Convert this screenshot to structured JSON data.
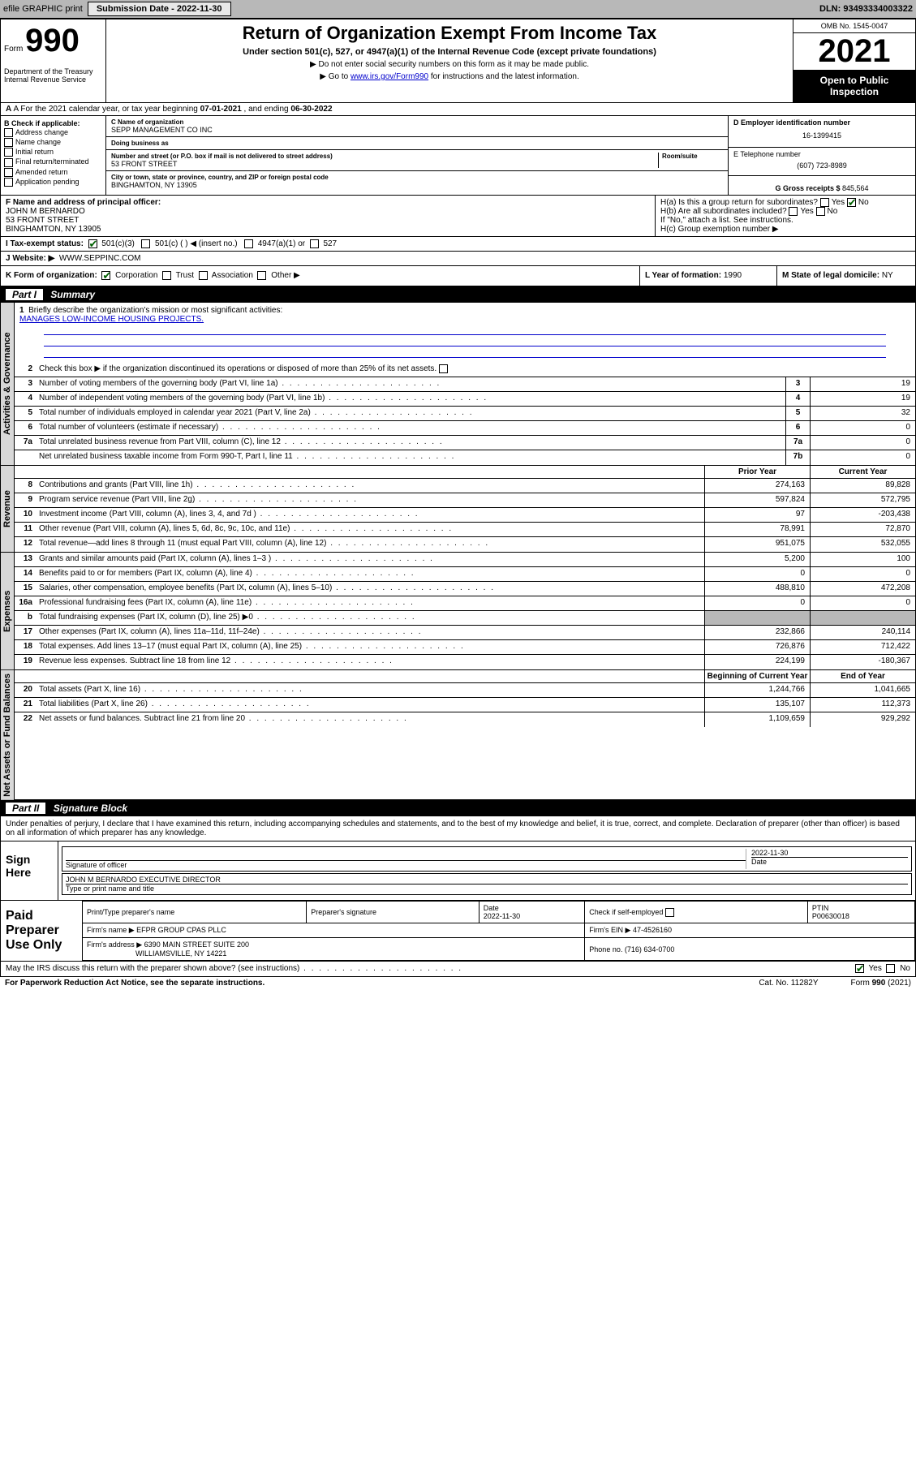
{
  "topbar": {
    "efile_label": "efile GRAPHIC print",
    "submission_label": "Submission Date - 2022-11-30",
    "dln_label": "DLN: 93493334003322"
  },
  "header": {
    "form_label": "Form",
    "form_number": "990",
    "dept": "Department of the Treasury\nInternal Revenue Service",
    "title": "Return of Organization Exempt From Income Tax",
    "subtitle": "Under section 501(c), 527, or 4947(a)(1) of the Internal Revenue Code (except private foundations)",
    "note1": "Do not enter social security numbers on this form as it may be made public.",
    "note2_prefix": "Go to ",
    "note2_link": "www.irs.gov/Form990",
    "note2_suffix": " for instructions and the latest information.",
    "omb": "OMB No. 1545-0047",
    "year": "2021",
    "open": "Open to Public Inspection"
  },
  "row_a": {
    "prefix": "A For the 2021 calendar year, or tax year beginning ",
    "begin": "07-01-2021",
    "mid": " , and ending ",
    "end": "06-30-2022"
  },
  "checkB": {
    "header": "B Check if applicable:",
    "items": [
      "Address change",
      "Name change",
      "Initial return",
      "Final return/terminated",
      "Amended return",
      "Application pending"
    ]
  },
  "colC": {
    "name_lbl": "C Name of organization",
    "name": "SEPP MANAGEMENT CO INC",
    "dba_lbl": "Doing business as",
    "dba": "",
    "street_lbl": "Number and street (or P.O. box if mail is not delivered to street address)",
    "room_lbl": "Room/suite",
    "street": "53 FRONT STREET",
    "city_lbl": "City or town, state or province, country, and ZIP or foreign postal code",
    "city": "BINGHAMTON, NY  13905"
  },
  "colDE": {
    "ein_lbl": "D Employer identification number",
    "ein": "16-1399415",
    "phone_lbl": "E Telephone number",
    "phone": "(607) 723-8989",
    "gross_lbl": "G Gross receipts $",
    "gross": "845,564"
  },
  "rowF": {
    "lbl": "F Name and address of principal officer:",
    "name": "JOHN M BERNARDO",
    "street": "53 FRONT STREET",
    "city": "BINGHAMTON, NY  13905"
  },
  "rowH": {
    "ha": "H(a)  Is this a group return for subordinates?",
    "ha_yes": "Yes",
    "ha_no": "No",
    "hb": "H(b)  Are all subordinates included?",
    "hb_yes": "Yes",
    "hb_no": "No",
    "hb_note": "If \"No,\" attach a list. See instructions.",
    "hc": "H(c)  Group exemption number ▶"
  },
  "rowI": {
    "lbl": "I    Tax-exempt status:",
    "i1": "501(c)(3)",
    "i2": "501(c) (  ) ◀ (insert no.)",
    "i3": "4947(a)(1) or",
    "i4": "527"
  },
  "rowJ": {
    "lbl": "J   Website: ▶",
    "val": "WWW.SEPPINC.COM"
  },
  "rowK": {
    "lbl": "K Form of organization:",
    "k1": "Corporation",
    "k2": "Trust",
    "k3": "Association",
    "k4": "Other ▶"
  },
  "rowL": {
    "lbl": "L Year of formation: ",
    "val": "1990"
  },
  "rowM": {
    "lbl": "M State of legal domicile: ",
    "val": "NY"
  },
  "part1": {
    "num": "Part I",
    "title": "Summary"
  },
  "sidebars": {
    "s1": "Activities & Governance",
    "s2": "Revenue",
    "s3": "Expenses",
    "s4": "Net Assets or Fund Balances"
  },
  "mission": {
    "n": "1",
    "lbl": "Briefly describe the organization's mission or most significant activities:",
    "text": "MANAGES LOW-INCOME HOUSING PROJECTS."
  },
  "line2": {
    "n": "2",
    "t": "Check this box ▶      if the organization discontinued its operations or disposed of more than 25% of its net assets."
  },
  "govRows": [
    {
      "n": "3",
      "t": "Number of voting members of the governing body (Part VI, line 1a)",
      "k": "3",
      "v": "19"
    },
    {
      "n": "4",
      "t": "Number of independent voting members of the governing body (Part VI, line 1b)",
      "k": "4",
      "v": "19"
    },
    {
      "n": "5",
      "t": "Total number of individuals employed in calendar year 2021 (Part V, line 2a)",
      "k": "5",
      "v": "32"
    },
    {
      "n": "6",
      "t": "Total number of volunteers (estimate if necessary)",
      "k": "6",
      "v": "0"
    },
    {
      "n": "7a",
      "t": "Total unrelated business revenue from Part VIII, column (C), line 12",
      "k": "7a",
      "v": "0"
    },
    {
      "n": "",
      "t": "Net unrelated business taxable income from Form 990-T, Part I, line 11",
      "k": "7b",
      "v": "0"
    }
  ],
  "colHdr": {
    "prior": "Prior Year",
    "current": "Current Year",
    "boy": "Beginning of Current Year",
    "eoy": "End of Year"
  },
  "revRows": [
    {
      "n": "8",
      "t": "Contributions and grants (Part VIII, line 1h)",
      "p": "274,163",
      "c": "89,828"
    },
    {
      "n": "9",
      "t": "Program service revenue (Part VIII, line 2g)",
      "p": "597,824",
      "c": "572,795"
    },
    {
      "n": "10",
      "t": "Investment income (Part VIII, column (A), lines 3, 4, and 7d )",
      "p": "97",
      "c": "-203,438"
    },
    {
      "n": "11",
      "t": "Other revenue (Part VIII, column (A), lines 5, 6d, 8c, 9c, 10c, and 11e)",
      "p": "78,991",
      "c": "72,870"
    },
    {
      "n": "12",
      "t": "Total revenue—add lines 8 through 11 (must equal Part VIII, column (A), line 12)",
      "p": "951,075",
      "c": "532,055"
    }
  ],
  "expRows": [
    {
      "n": "13",
      "t": "Grants and similar amounts paid (Part IX, column (A), lines 1–3 )",
      "p": "5,200",
      "c": "100"
    },
    {
      "n": "14",
      "t": "Benefits paid to or for members (Part IX, column (A), line 4)",
      "p": "0",
      "c": "0"
    },
    {
      "n": "15",
      "t": "Salaries, other compensation, employee benefits (Part IX, column (A), lines 5–10)",
      "p": "488,810",
      "c": "472,208"
    },
    {
      "n": "16a",
      "t": "Professional fundraising fees (Part IX, column (A), line 11e)",
      "p": "0",
      "c": "0"
    },
    {
      "n": "b",
      "t": "Total fundraising expenses (Part IX, column (D), line 25) ▶0",
      "p": "",
      "c": "",
      "shade": true
    },
    {
      "n": "17",
      "t": "Other expenses (Part IX, column (A), lines 11a–11d, 11f–24e)",
      "p": "232,866",
      "c": "240,114"
    },
    {
      "n": "18",
      "t": "Total expenses. Add lines 13–17 (must equal Part IX, column (A), line 25)",
      "p": "726,876",
      "c": "712,422"
    },
    {
      "n": "19",
      "t": "Revenue less expenses. Subtract line 18 from line 12",
      "p": "224,199",
      "c": "-180,367"
    }
  ],
  "netRows": [
    {
      "n": "20",
      "t": "Total assets (Part X, line 16)",
      "p": "1,244,766",
      "c": "1,041,665"
    },
    {
      "n": "21",
      "t": "Total liabilities (Part X, line 26)",
      "p": "135,107",
      "c": "112,373"
    },
    {
      "n": "22",
      "t": "Net assets or fund balances. Subtract line 21 from line 20",
      "p": "1,109,659",
      "c": "929,292"
    }
  ],
  "part2": {
    "num": "Part II",
    "title": "Signature Block"
  },
  "sigIntro": "Under penalties of perjury, I declare that I have examined this return, including accompanying schedules and statements, and to the best of my knowledge and belief, it is true, correct, and complete. Declaration of preparer (other than officer) is based on all information of which preparer has any knowledge.",
  "sign": {
    "lbl": "Sign Here",
    "sig_lbl": "Signature of officer",
    "date_lbl": "Date",
    "date": "2022-11-30",
    "name": "JOHN M BERNARDO  EXECUTIVE DIRECTOR",
    "name_lbl": "Type or print name and title"
  },
  "paid": {
    "lbl": "Paid Preparer Use Only",
    "h1": "Print/Type preparer's name",
    "h2": "Preparer's signature",
    "h3": "Date",
    "h3v": "2022-11-30",
    "h4": "Check       if self-employed",
    "h5": "PTIN",
    "h5v": "P00630018",
    "firm_lbl": "Firm's name    ▶",
    "firm": "EFPR GROUP CPAS PLLC",
    "fein_lbl": "Firm's EIN ▶",
    "fein": "47-4526160",
    "addr_lbl": "Firm's address ▶",
    "addr1": "6390 MAIN STREET SUITE 200",
    "addr2": "WILLIAMSVILLE, NY  14221",
    "phone_lbl": "Phone no.",
    "phone": "(716) 634-0700"
  },
  "discuss": {
    "q": "May the IRS discuss this return with the preparer shown above? (see instructions)",
    "yes": "Yes",
    "no": "No"
  },
  "footer": {
    "l": "For Paperwork Reduction Act Notice, see the separate instructions.",
    "c": "Cat. No. 11282Y",
    "r": "Form 990 (2021)"
  }
}
